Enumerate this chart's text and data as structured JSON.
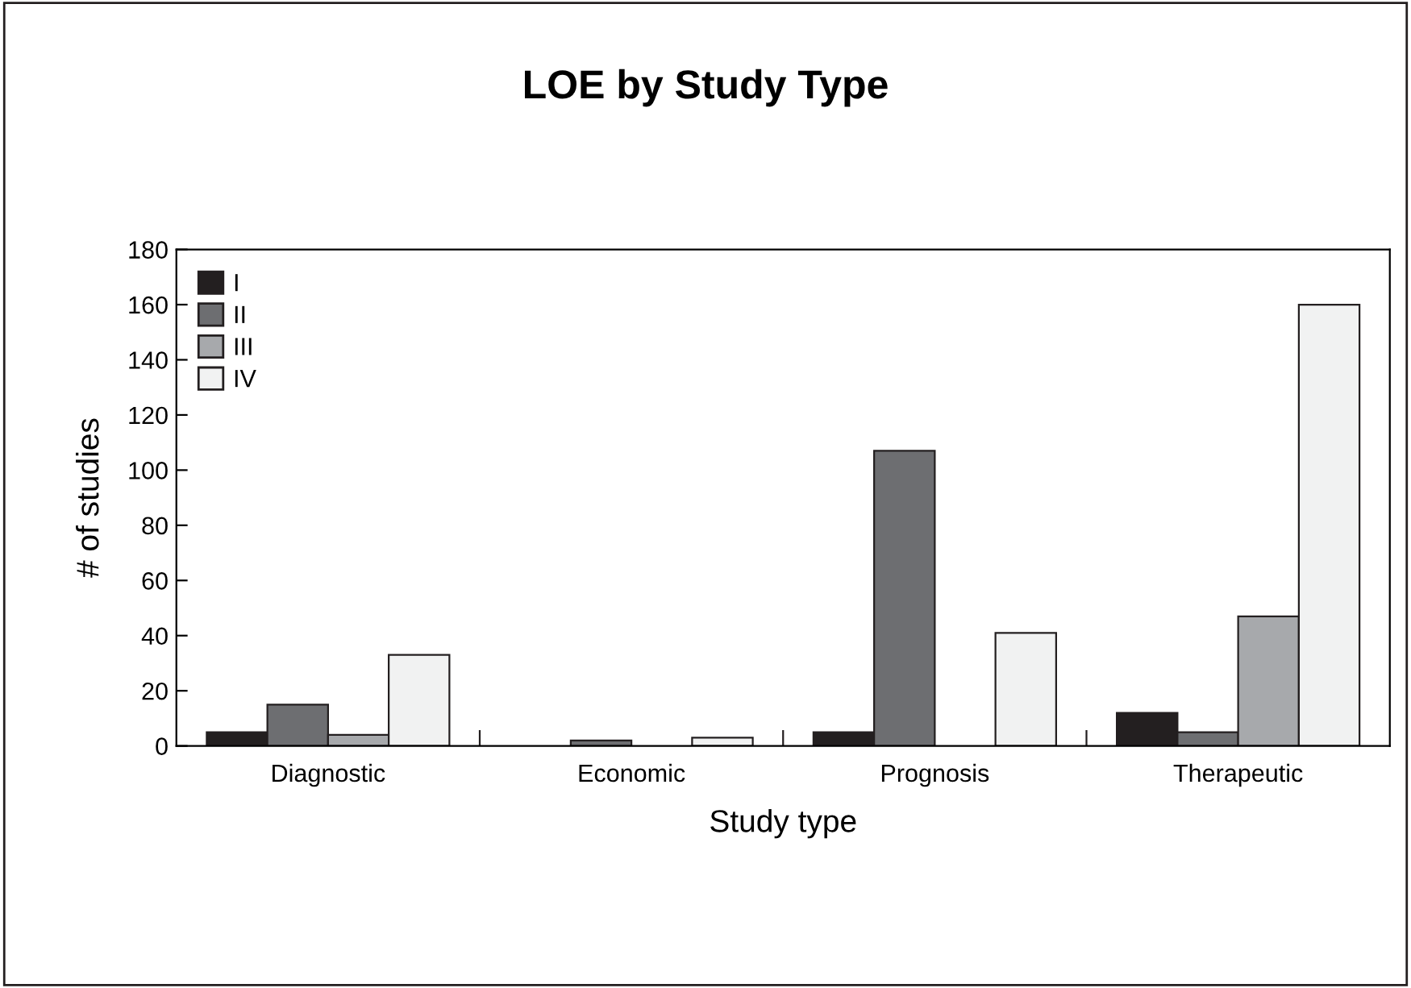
{
  "chart_data": {
    "type": "bar",
    "title": "LOE by Study Type",
    "xlabel": "Study type",
    "ylabel": "# of studies",
    "categories": [
      "Diagnostic",
      "Economic",
      "Prognosis",
      "Therapeutic"
    ],
    "series": [
      {
        "name": "I",
        "color": "#231f20",
        "values": [
          5,
          0,
          5,
          12
        ]
      },
      {
        "name": "II",
        "color": "#6d6e71",
        "values": [
          15,
          2,
          107,
          5
        ]
      },
      {
        "name": "III",
        "color": "#a7a9ac",
        "values": [
          4,
          0,
          0,
          47
        ]
      },
      {
        "name": "IV",
        "color": "#f1f2f2",
        "values": [
          33,
          3,
          41,
          160
        ]
      }
    ],
    "ylim": [
      0,
      180
    ],
    "yticks": [
      0,
      20,
      40,
      60,
      80,
      100,
      120,
      140,
      160,
      180
    ],
    "grid": false,
    "legend": "top left"
  }
}
